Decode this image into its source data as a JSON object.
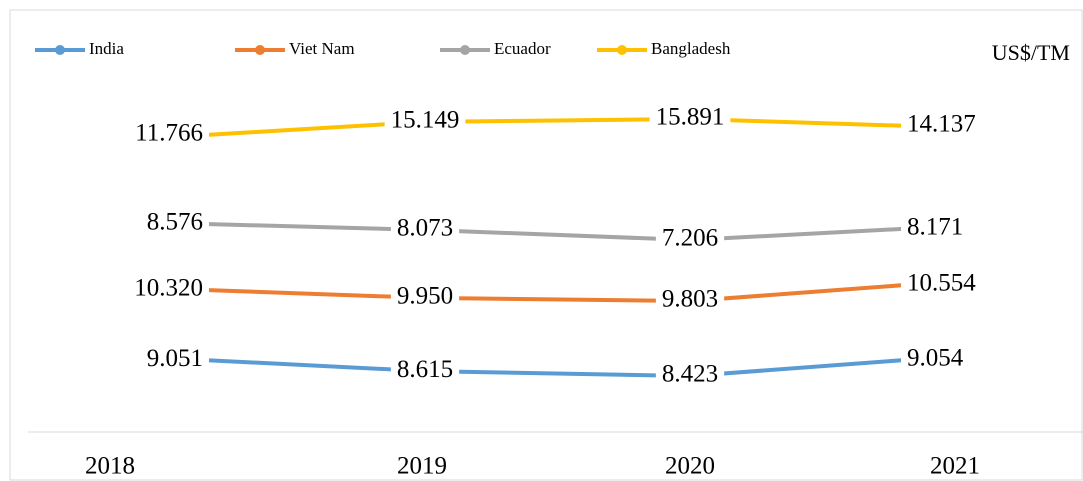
{
  "chart_data": {
    "type": "line",
    "unit": "US$/TM",
    "categories": [
      "2018",
      "2019",
      "2020",
      "2021"
    ],
    "series": [
      {
        "name": "India",
        "color": "#5b9bd5",
        "values": [
          9051,
          8615,
          8423,
          9054
        ],
        "value_labels": [
          "9.051",
          "8.615",
          "8.423",
          "9.054"
        ]
      },
      {
        "name": "Viet Nam",
        "color": "#ed7d31",
        "values": [
          10320,
          9950,
          9803,
          10554
        ],
        "value_labels": [
          "10.320",
          "9.950",
          "9.803",
          "10.554"
        ]
      },
      {
        "name": "Ecuador",
        "color": "#a5a5a5",
        "values": [
          8576,
          8073,
          7206,
          8171
        ],
        "value_labels": [
          "8.576",
          "8.073",
          "7.206",
          "8.171"
        ]
      },
      {
        "name": "Bangladesh",
        "color": "#ffc000",
        "values": [
          11766,
          15149,
          15891,
          14137
        ],
        "value_labels": [
          "11.766",
          "15.149",
          "15.891",
          "14.137"
        ]
      }
    ]
  }
}
